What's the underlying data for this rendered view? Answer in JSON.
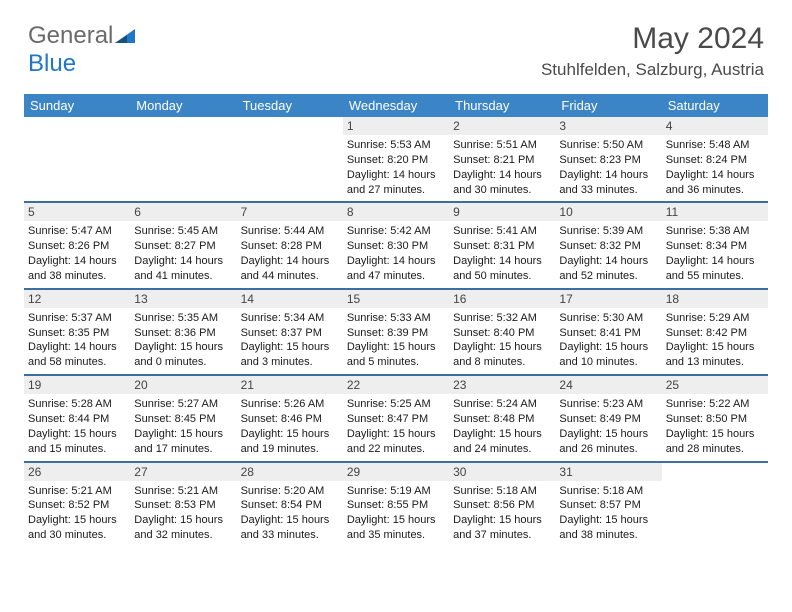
{
  "brand": {
    "part1": "General",
    "part2": "Blue"
  },
  "title": "May 2024",
  "location": "Stuhlfelden, Salzburg, Austria",
  "colors": {
    "header_bg": "#3b85c6",
    "header_text": "#ffffff",
    "daynum_bg": "#eeeeee",
    "row_divider": "#3b6fa0",
    "logo_gray": "#6a6a6a",
    "logo_blue": "#2176c7"
  },
  "weekdays": [
    "Sunday",
    "Monday",
    "Tuesday",
    "Wednesday",
    "Thursday",
    "Friday",
    "Saturday"
  ],
  "grid": [
    [
      null,
      null,
      null,
      {
        "n": "1",
        "sr": "5:53 AM",
        "ss": "8:20 PM",
        "dl": "14 hours and 27 minutes."
      },
      {
        "n": "2",
        "sr": "5:51 AM",
        "ss": "8:21 PM",
        "dl": "14 hours and 30 minutes."
      },
      {
        "n": "3",
        "sr": "5:50 AM",
        "ss": "8:23 PM",
        "dl": "14 hours and 33 minutes."
      },
      {
        "n": "4",
        "sr": "5:48 AM",
        "ss": "8:24 PM",
        "dl": "14 hours and 36 minutes."
      }
    ],
    [
      {
        "n": "5",
        "sr": "5:47 AM",
        "ss": "8:26 PM",
        "dl": "14 hours and 38 minutes."
      },
      {
        "n": "6",
        "sr": "5:45 AM",
        "ss": "8:27 PM",
        "dl": "14 hours and 41 minutes."
      },
      {
        "n": "7",
        "sr": "5:44 AM",
        "ss": "8:28 PM",
        "dl": "14 hours and 44 minutes."
      },
      {
        "n": "8",
        "sr": "5:42 AM",
        "ss": "8:30 PM",
        "dl": "14 hours and 47 minutes."
      },
      {
        "n": "9",
        "sr": "5:41 AM",
        "ss": "8:31 PM",
        "dl": "14 hours and 50 minutes."
      },
      {
        "n": "10",
        "sr": "5:39 AM",
        "ss": "8:32 PM",
        "dl": "14 hours and 52 minutes."
      },
      {
        "n": "11",
        "sr": "5:38 AM",
        "ss": "8:34 PM",
        "dl": "14 hours and 55 minutes."
      }
    ],
    [
      {
        "n": "12",
        "sr": "5:37 AM",
        "ss": "8:35 PM",
        "dl": "14 hours and 58 minutes."
      },
      {
        "n": "13",
        "sr": "5:35 AM",
        "ss": "8:36 PM",
        "dl": "15 hours and 0 minutes."
      },
      {
        "n": "14",
        "sr": "5:34 AM",
        "ss": "8:37 PM",
        "dl": "15 hours and 3 minutes."
      },
      {
        "n": "15",
        "sr": "5:33 AM",
        "ss": "8:39 PM",
        "dl": "15 hours and 5 minutes."
      },
      {
        "n": "16",
        "sr": "5:32 AM",
        "ss": "8:40 PM",
        "dl": "15 hours and 8 minutes."
      },
      {
        "n": "17",
        "sr": "5:30 AM",
        "ss": "8:41 PM",
        "dl": "15 hours and 10 minutes."
      },
      {
        "n": "18",
        "sr": "5:29 AM",
        "ss": "8:42 PM",
        "dl": "15 hours and 13 minutes."
      }
    ],
    [
      {
        "n": "19",
        "sr": "5:28 AM",
        "ss": "8:44 PM",
        "dl": "15 hours and 15 minutes."
      },
      {
        "n": "20",
        "sr": "5:27 AM",
        "ss": "8:45 PM",
        "dl": "15 hours and 17 minutes."
      },
      {
        "n": "21",
        "sr": "5:26 AM",
        "ss": "8:46 PM",
        "dl": "15 hours and 19 minutes."
      },
      {
        "n": "22",
        "sr": "5:25 AM",
        "ss": "8:47 PM",
        "dl": "15 hours and 22 minutes."
      },
      {
        "n": "23",
        "sr": "5:24 AM",
        "ss": "8:48 PM",
        "dl": "15 hours and 24 minutes."
      },
      {
        "n": "24",
        "sr": "5:23 AM",
        "ss": "8:49 PM",
        "dl": "15 hours and 26 minutes."
      },
      {
        "n": "25",
        "sr": "5:22 AM",
        "ss": "8:50 PM",
        "dl": "15 hours and 28 minutes."
      }
    ],
    [
      {
        "n": "26",
        "sr": "5:21 AM",
        "ss": "8:52 PM",
        "dl": "15 hours and 30 minutes."
      },
      {
        "n": "27",
        "sr": "5:21 AM",
        "ss": "8:53 PM",
        "dl": "15 hours and 32 minutes."
      },
      {
        "n": "28",
        "sr": "5:20 AM",
        "ss": "8:54 PM",
        "dl": "15 hours and 33 minutes."
      },
      {
        "n": "29",
        "sr": "5:19 AM",
        "ss": "8:55 PM",
        "dl": "15 hours and 35 minutes."
      },
      {
        "n": "30",
        "sr": "5:18 AM",
        "ss": "8:56 PM",
        "dl": "15 hours and 37 minutes."
      },
      {
        "n": "31",
        "sr": "5:18 AM",
        "ss": "8:57 PM",
        "dl": "15 hours and 38 minutes."
      },
      null
    ]
  ],
  "labels": {
    "sunrise": "Sunrise:",
    "sunset": "Sunset:",
    "daylight": "Daylight:"
  }
}
